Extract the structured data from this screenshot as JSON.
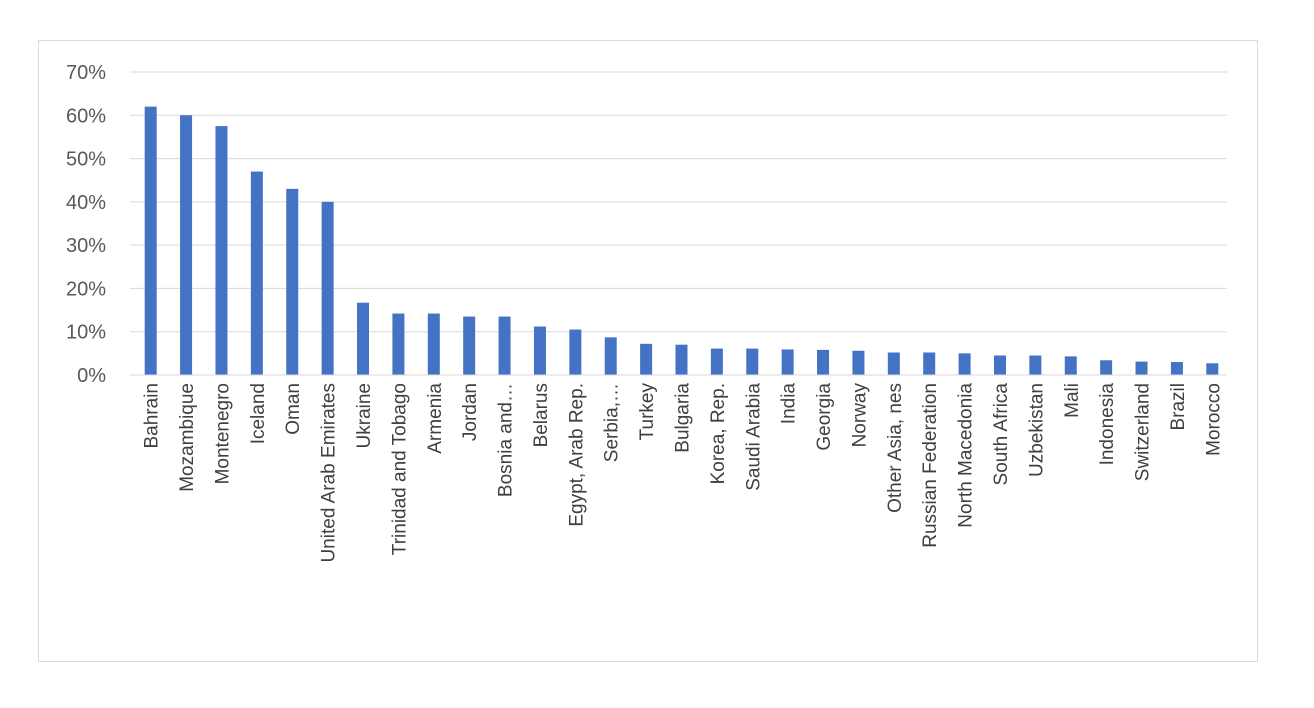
{
  "chart_data": {
    "type": "bar",
    "title": "",
    "xlabel": "",
    "ylabel": "",
    "ylim": [
      0,
      0.7
    ],
    "yticks": [
      0,
      0.1,
      0.2,
      0.3,
      0.4,
      0.5,
      0.6,
      0.7
    ],
    "ytick_labels": [
      "0%",
      "10%",
      "20%",
      "30%",
      "40%",
      "50%",
      "60%",
      "70%"
    ],
    "grid": true,
    "bar_color": "#4472c4",
    "categories": [
      "Bahrain",
      "Mozambique",
      "Montenegro",
      "Iceland",
      "Oman",
      "United Arab Emirates",
      "Ukraine",
      "Trinidad and Tobago",
      "Armenia",
      "Jordan",
      "Bosnia and…",
      "Belarus",
      "Egypt, Arab Rep.",
      "Serbia,…",
      "Turkey",
      "Bulgaria",
      "Korea, Rep.",
      "Saudi Arabia",
      "India",
      "Georgia",
      "Norway",
      "Other Asia, nes",
      "Russian Federation",
      "North Macedonia",
      "South Africa",
      "Uzbekistan",
      "Mali",
      "Indonesia",
      "Switzerland",
      "Brazil",
      "Morocco"
    ],
    "values": [
      0.62,
      0.6,
      0.575,
      0.47,
      0.43,
      0.4,
      0.167,
      0.142,
      0.142,
      0.135,
      0.135,
      0.112,
      0.105,
      0.087,
      0.072,
      0.07,
      0.061,
      0.061,
      0.059,
      0.058,
      0.056,
      0.052,
      0.052,
      0.05,
      0.045,
      0.045,
      0.043,
      0.034,
      0.031,
      0.03,
      0.027
    ]
  }
}
